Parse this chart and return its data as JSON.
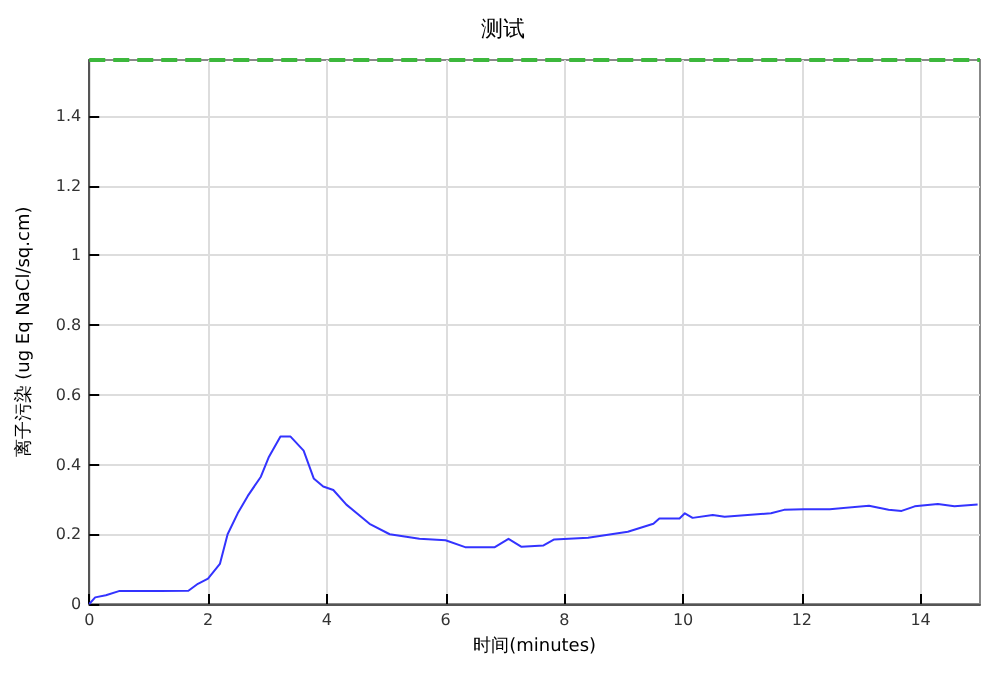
{
  "chart_data": {
    "type": "line",
    "title": "测试",
    "xlabel": "时间(minutes)",
    "ylabel": "离子污染 (ug Eq NaCl/sq.cm)",
    "series": [
      {
        "color": "#3333ff",
        "x": [
          0,
          0.1,
          0.28,
          0.5,
          1.2,
          1.67,
          1.83,
          2,
          2.2,
          2.33,
          2.5,
          2.67,
          2.89,
          3.02,
          3.22,
          3.39,
          3.61,
          3.78,
          3.94,
          4.11,
          4.33,
          4.72,
          5.06,
          5.56,
          6,
          6.33,
          6.83,
          7.06,
          7.28,
          7.65,
          7.83,
          8.4,
          9.07,
          9.5,
          9.6,
          9.94,
          10.03,
          10.16,
          10.5,
          10.7,
          11.48,
          11.7,
          12.03,
          12.47,
          13.13,
          13.46,
          13.68,
          13.9,
          14.29,
          14.57,
          14.96
        ],
        "values": [
          0,
          0.019,
          0.025,
          0.037,
          0.037,
          0.038,
          0.058,
          0.073,
          0.115,
          0.2,
          0.26,
          0.31,
          0.365,
          0.42,
          0.48,
          0.48,
          0.44,
          0.36,
          0.337,
          0.327,
          0.285,
          0.23,
          0.2,
          0.187,
          0.183,
          0.163,
          0.163,
          0.187,
          0.164,
          0.168,
          0.185,
          0.19,
          0.207,
          0.23,
          0.245,
          0.245,
          0.26,
          0.247,
          0.255,
          0.25,
          0.26,
          0.27,
          0.272,
          0.272,
          0.282,
          0.27,
          0.267,
          0.28,
          0.287,
          0.28,
          0.285
        ]
      }
    ],
    "xlim": [
      0,
      15
    ],
    "xticks": [
      0,
      2,
      4,
      6,
      8,
      10,
      12,
      14
    ],
    "ylim": [
      0,
      1.56
    ],
    "yticks": [
      0,
      0.2,
      0.4,
      0.6,
      0.8,
      1,
      1.2,
      1.4
    ],
    "ref_lines": [
      {
        "axis": "y",
        "value": 1.56,
        "color": "#3cb83c",
        "line_style": "dashed"
      }
    ],
    "grid": true,
    "marker": "none",
    "line_style": "solid"
  }
}
